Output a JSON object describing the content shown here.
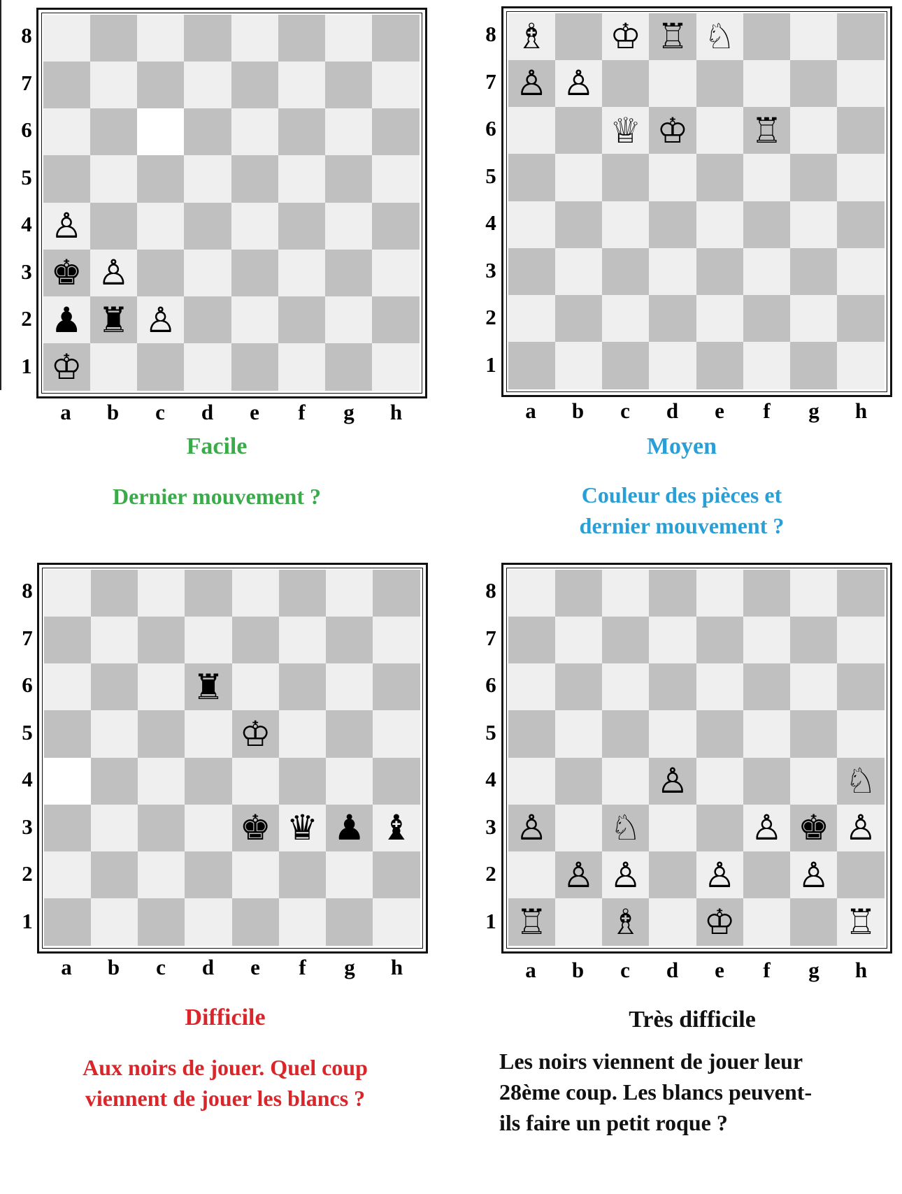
{
  "files": [
    "a",
    "b",
    "c",
    "d",
    "e",
    "f",
    "g",
    "h"
  ],
  "ranks": [
    "8",
    "7",
    "6",
    "5",
    "4",
    "3",
    "2",
    "1"
  ],
  "colors": {
    "light_square": "#efefef",
    "dark_square": "#c0c0c0",
    "highlight_square": "#ffffff",
    "facile": "#3bab4a",
    "moyen": "#2a9fd6",
    "difficile": "#d9262a",
    "tres_difficile": "#111111"
  },
  "puzzles": [
    {
      "level": "Facile",
      "question": [
        "Dernier mouvement ?"
      ],
      "highlight": [
        "c6"
      ],
      "pieces": {
        "a4": "wP",
        "a3": "bK",
        "b3": "wP",
        "a2": "bP",
        "b2": "bR",
        "c2": "wP",
        "a1": "wK"
      }
    },
    {
      "level": "Moyen",
      "question": [
        "Couleur des pièces et",
        "dernier mouvement ?"
      ],
      "highlight": [],
      "pieces": {
        "a8": "wB",
        "c8": "wK",
        "d8": "wR",
        "e8": "wN",
        "a7": "wP",
        "b7": "wP",
        "c6": "wQ",
        "d6": "wK",
        "f6": "wR"
      }
    },
    {
      "level": "Difficile",
      "question": [
        "Aux noirs de jouer. Quel coup",
        "viennent de jouer les blancs ?"
      ],
      "highlight": [
        "a4"
      ],
      "pieces": {
        "d6": "bR",
        "e5": "wK",
        "e3": "bK",
        "f3": "bQ",
        "g3": "bP",
        "h3": "bB"
      }
    },
    {
      "level": "Très difficile",
      "question": [
        "Les noirs viennent de jouer leur",
        "28ème coup. Les blancs peuvent-",
        "ils faire un petit roque ?"
      ],
      "highlight": [],
      "pieces": {
        "d4": "wP",
        "h4": "wN",
        "a3": "wP",
        "c3": "wN",
        "f3": "wP",
        "g3": "bK",
        "h3": "wP",
        "b2": "wP",
        "c2": "wP",
        "e2": "wP",
        "g2": "wP",
        "a1": "wR",
        "c1": "wB",
        "e1": "wK",
        "h1": "wR"
      }
    }
  ]
}
